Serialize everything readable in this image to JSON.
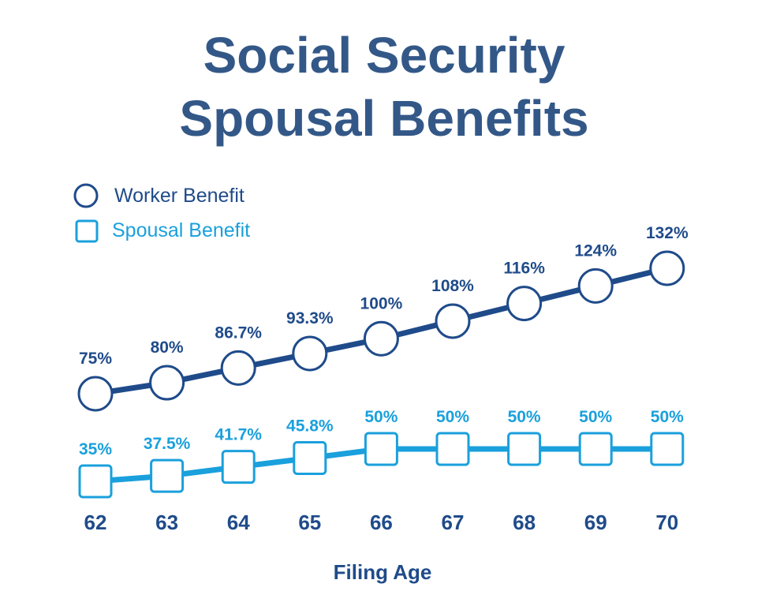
{
  "chart_data": {
    "type": "line",
    "title_lines": [
      "Social Security",
      "Spousal Benefits"
    ],
    "xlabel": "Filing Age",
    "ylabel": "",
    "categories": [
      "62",
      "63",
      "64",
      "65",
      "66",
      "67",
      "68",
      "69",
      "70"
    ],
    "legend_position": "top-left",
    "grid": false,
    "series": [
      {
        "name": "Worker Benefit",
        "marker": "circle",
        "color": "#1f4b8a",
        "values": [
          75,
          80,
          86.7,
          93.3,
          100,
          108,
          116,
          124,
          132
        ],
        "labels": [
          "75%",
          "80%",
          "86.7%",
          "93.3%",
          "100%",
          "108%",
          "116%",
          "124%",
          "132%"
        ]
      },
      {
        "name": "Spousal Benefit",
        "marker": "square",
        "color": "#1aa0dc",
        "values": [
          35,
          37.5,
          41.7,
          45.8,
          50,
          50,
          50,
          50,
          50
        ],
        "labels": [
          "35%",
          "37.5%",
          "41.7%",
          "45.8%",
          "50%",
          "50%",
          "50%",
          "50%",
          "50%"
        ]
      }
    ]
  }
}
